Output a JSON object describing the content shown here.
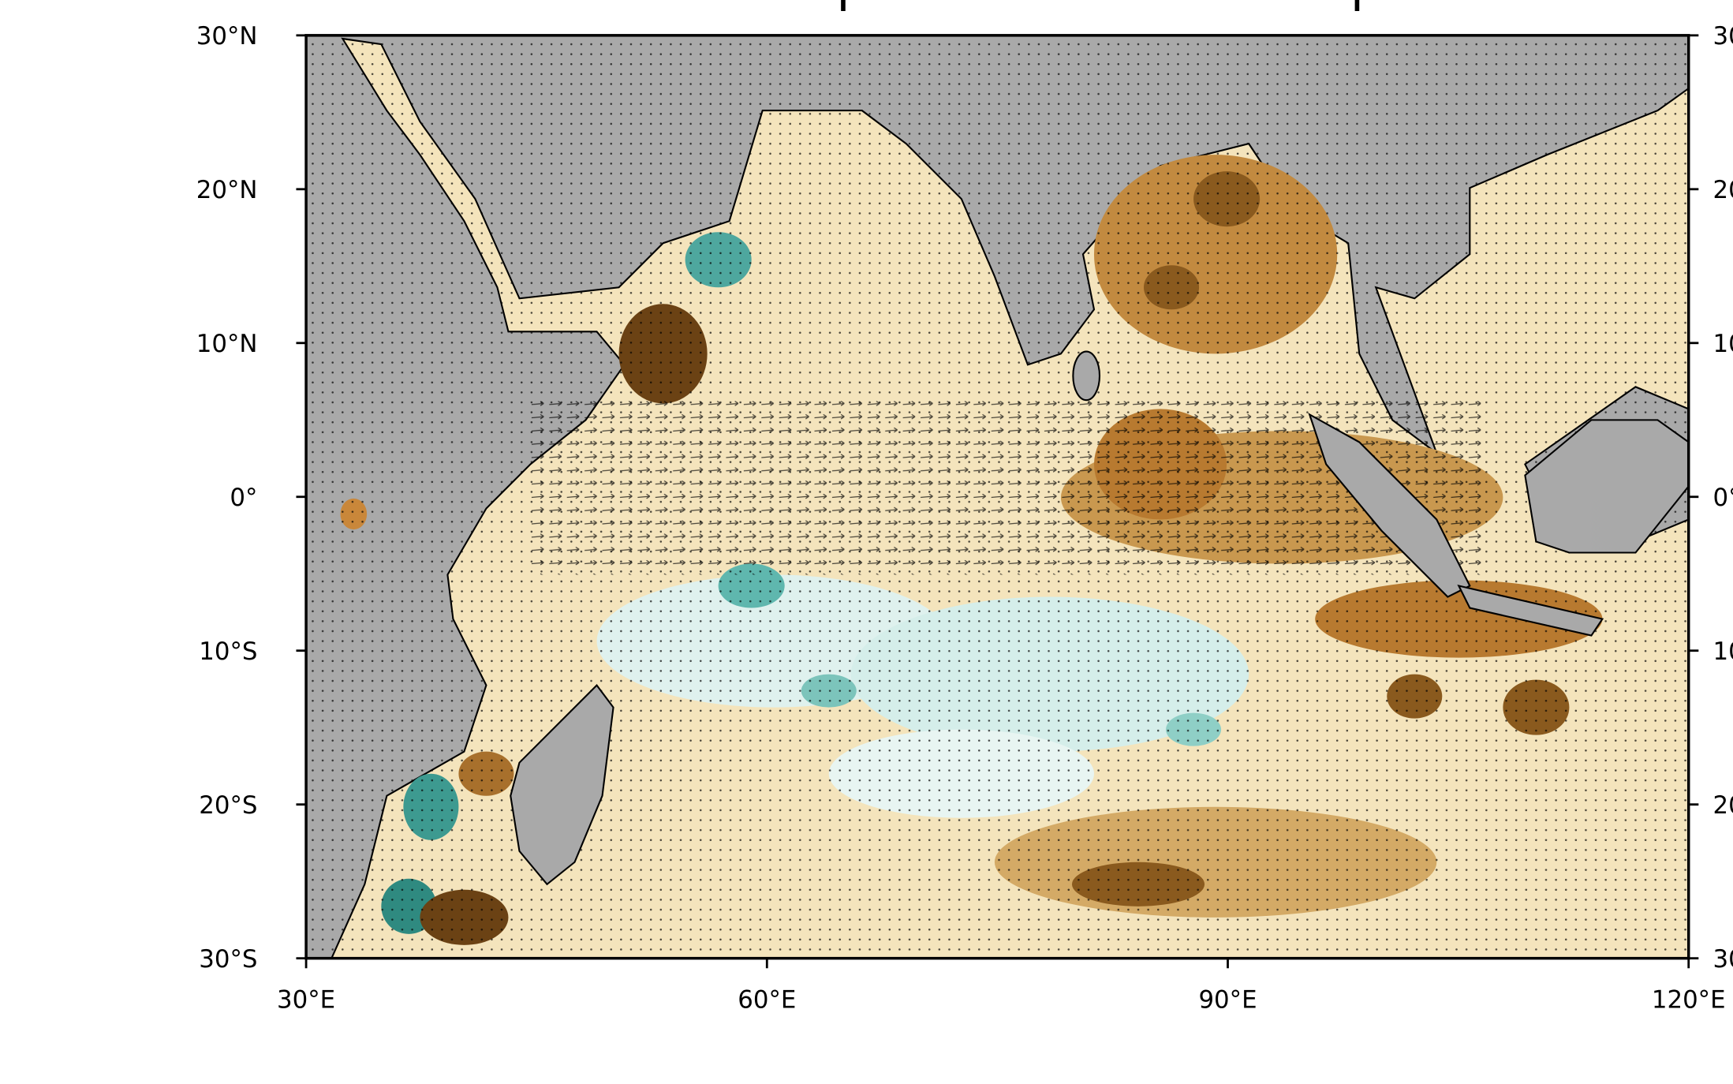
{
  "map": {
    "lon_ticks": [
      {
        "value": 30,
        "label": "30°E"
      },
      {
        "value": 60,
        "label": "60°E"
      },
      {
        "value": 90,
        "label": "90°E"
      },
      {
        "value": 120,
        "label": "120°E"
      }
    ],
    "lat_ticks": [
      {
        "value": 30,
        "label": "30°N"
      },
      {
        "value": 20,
        "label": "20°N"
      },
      {
        "value": 10,
        "label": "10°N"
      },
      {
        "value": 0,
        "label": "0°"
      },
      {
        "value": -10,
        "label": "10°S"
      },
      {
        "value": -20,
        "label": "20°S"
      },
      {
        "value": -30,
        "label": "30°S"
      }
    ],
    "lonlim": [
      30,
      120
    ],
    "latlim": [
      -30,
      30
    ]
  }
}
